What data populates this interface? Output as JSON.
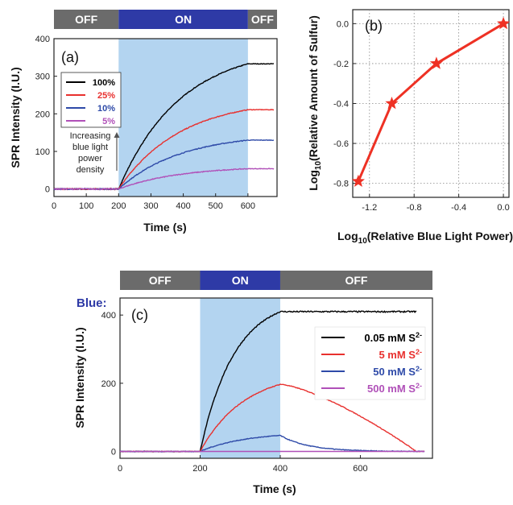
{
  "colors": {
    "gray_bar": "#6b6b6b",
    "blue_bar": "#2e3aa6",
    "shade": "#b3d4f0",
    "s100": "#000000",
    "s25": "#e8302e",
    "s10": "#2e4aa8",
    "s5": "#b050b8",
    "marker": "#ee3124"
  },
  "chart_data": [
    {
      "panel": "(a)",
      "type": "line",
      "xlabel": "Time (s)",
      "ylabel": "SPR Intensity (I.U.)",
      "xlim": [
        0,
        690
      ],
      "ylim": [
        -20,
        400
      ],
      "xticks": [
        0,
        100,
        200,
        300,
        400,
        500,
        600
      ],
      "yticks": [
        0,
        100,
        200,
        300,
        400
      ],
      "light_bar": [
        {
          "label": "OFF",
          "from": 0,
          "to": 200,
          "state": "off"
        },
        {
          "label": "ON",
          "from": 200,
          "to": 600,
          "state": "on"
        },
        {
          "label": "OFF",
          "from": 600,
          "to": 690,
          "state": "off"
        }
      ],
      "shaded": [
        200,
        600
      ],
      "annotation": "Increasing blue light power density",
      "annotation_lines": [
        "Increasing",
        "blue light",
        "power",
        "density"
      ],
      "series": [
        {
          "name": "100%",
          "color": "#000000",
          "plateau": 333,
          "on": 200,
          "off": 600
        },
        {
          "name": "25%",
          "color": "#e8302e",
          "plateau": 211,
          "on": 200,
          "off": 600
        },
        {
          "name": "10%",
          "color": "#2e4aa8",
          "plateau": 130,
          "on": 200,
          "off": 600
        },
        {
          "name": "5%",
          "color": "#b050b8",
          "plateau": 54,
          "on": 200,
          "off": 600
        }
      ]
    },
    {
      "panel": "(b)",
      "type": "scatter",
      "xlabel_pre": "Log",
      "xlabel_sub": "10",
      "xlabel_post": "(Relative Blue Light Power)",
      "ylabel_pre": "Log",
      "ylabel_sub": "10",
      "ylabel_post": "(Relative Amount of Sulfur)",
      "xlim": [
        -1.35,
        0.05
      ],
      "ylim": [
        -0.87,
        0.07
      ],
      "xticks": [
        "-1.2",
        "-0.8",
        "-0.4",
        "0.0"
      ],
      "xtick_values": [
        -1.2,
        -0.8,
        -0.4,
        0.0
      ],
      "yticks": [
        "0.0",
        "-0.2",
        "-0.4",
        "-0.6",
        "-0.8"
      ],
      "ytick_values": [
        0.0,
        -0.2,
        -0.4,
        -0.6,
        -0.8
      ],
      "grid": true,
      "series": [
        {
          "x": [
            -1.3,
            -1.0,
            -0.6,
            0.0
          ],
          "y": [
            -0.79,
            -0.4,
            -0.2,
            0.0
          ],
          "color": "#ee3124"
        }
      ]
    },
    {
      "panel": "(c)",
      "type": "line",
      "xlabel": "Time (s)",
      "ylabel": "SPR Intensity (I.U.)",
      "xlim": [
        0,
        780
      ],
      "ylim": [
        -20,
        450
      ],
      "xticks": [
        0,
        200,
        400,
        600
      ],
      "yticks": [
        0,
        200,
        400
      ],
      "bar_title": "Blue:",
      "light_bar": [
        {
          "label": "OFF",
          "from": 0,
          "to": 200,
          "state": "off"
        },
        {
          "label": "ON",
          "from": 200,
          "to": 400,
          "state": "on"
        },
        {
          "label": "OFF",
          "from": 400,
          "to": 780,
          "state": "off"
        }
      ],
      "shaded": [
        200,
        400
      ],
      "series": [
        {
          "name": "0.05 mM S",
          "sup": "2-",
          "color": "#000000",
          "peak": 410,
          "decay": 0
        },
        {
          "name": "5 mM S",
          "sup": "2-",
          "color": "#e8302e",
          "peak": 197,
          "decay": 1
        },
        {
          "name": "50 mM S",
          "sup": "2-",
          "color": "#2e4aa8",
          "peak": 47,
          "decay": 2
        },
        {
          "name": "500 mM S",
          "sup": "2-",
          "color": "#b050b8",
          "peak": 0,
          "decay": 3
        }
      ]
    }
  ]
}
